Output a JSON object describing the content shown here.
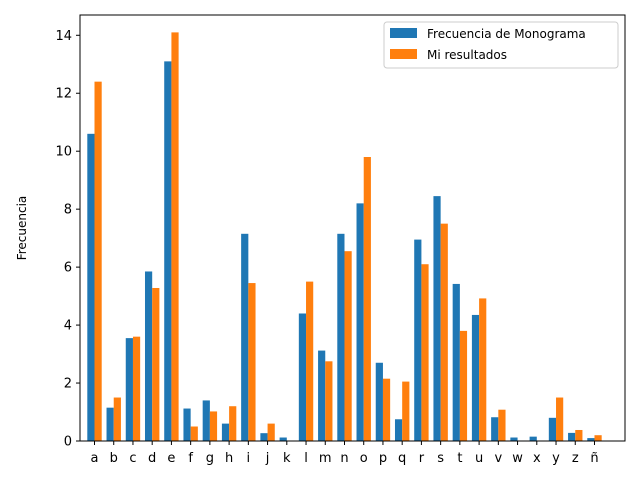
{
  "chart_data": {
    "type": "bar",
    "title": "",
    "xlabel": "",
    "ylabel": "Frecuencia",
    "ylim": [
      0,
      14.7
    ],
    "yticks": [
      0,
      2,
      4,
      6,
      8,
      10,
      12,
      14
    ],
    "ytick_labels": [
      "0",
      "2",
      "4",
      "6",
      "8",
      "10",
      "12",
      "14"
    ],
    "grid": false,
    "legend_position": "top-right",
    "categories": [
      "a",
      "b",
      "c",
      "d",
      "e",
      "f",
      "g",
      "h",
      "i",
      "j",
      "k",
      "l",
      "m",
      "n",
      "o",
      "p",
      "q",
      "r",
      "s",
      "t",
      "u",
      "v",
      "w",
      "x",
      "y",
      "z",
      "ñ"
    ],
    "series": [
      {
        "name": "Frecuencia de Monograma",
        "color": "#1f77b4",
        "values": [
          10.6,
          1.15,
          3.55,
          5.85,
          13.1,
          1.12,
          1.4,
          0.6,
          7.15,
          0.27,
          0.12,
          4.4,
          3.12,
          7.15,
          8.2,
          2.7,
          0.75,
          6.95,
          8.45,
          5.42,
          4.35,
          0.82,
          0.12,
          0.15,
          0.8,
          0.28,
          0.1
        ]
      },
      {
        "name": "Mi resultados",
        "color": "#ff7f0e",
        "values": [
          12.4,
          1.5,
          3.6,
          5.28,
          14.1,
          0.5,
          1.02,
          1.2,
          5.45,
          0.6,
          0.0,
          5.5,
          2.75,
          6.55,
          9.8,
          2.15,
          2.05,
          6.1,
          7.5,
          3.8,
          4.92,
          1.08,
          0.0,
          0.0,
          1.5,
          0.38,
          0.2
        ]
      }
    ]
  }
}
